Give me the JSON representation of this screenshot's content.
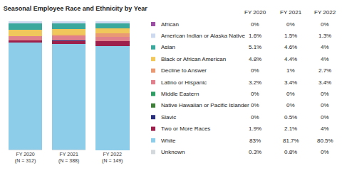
{
  "chart_data": {
    "type": "bar",
    "title": "Seasonal Employee Race and Ethnicity by Year",
    "stacked": true,
    "grid": false,
    "tick_labels": "x",
    "categories": [
      "FY 2020\n(N = 312)",
      "FY 2021\n(N = 388)",
      "FY 2022\n(N = 149)"
    ],
    "ylim": [
      0,
      100
    ],
    "yticks": [
      0,
      100
    ],
    "series": [
      {
        "name": "African",
        "color": "#9b4fa3",
        "values": [
          0,
          0,
          0
        ],
        "value_labels": [
          "0%",
          "0%",
          "0%"
        ]
      },
      {
        "name": "American Indian or Alaska Native",
        "color": "#cdd9ee",
        "values": [
          1.6,
          1.5,
          1.3
        ],
        "value_labels": [
          "1.6%",
          "1.5%",
          "1.3%"
        ]
      },
      {
        "name": "Asian",
        "color": "#3aa89c",
        "values": [
          5.1,
          4.6,
          4
        ],
        "value_labels": [
          "5.1%",
          "4.6%",
          "4%"
        ]
      },
      {
        "name": "Black or African American",
        "color": "#f0c75a",
        "values": [
          4.8,
          4.4,
          4
        ],
        "value_labels": [
          "4.8%",
          "4.4%",
          "4%"
        ]
      },
      {
        "name": "Decline to Answer",
        "color": "#e99a74",
        "values": [
          0,
          1,
          2.7
        ],
        "value_labels": [
          "0%",
          "1%",
          "2.7%"
        ]
      },
      {
        "name": "Latino or Hispanic",
        "color": "#e0808c",
        "values": [
          3.2,
          3.4,
          3.4
        ],
        "value_labels": [
          "3.2%",
          "3.4%",
          "3.4%"
        ]
      },
      {
        "name": "Middle Eastern",
        "color": "#2f9d63",
        "values": [
          0,
          0,
          0
        ],
        "value_labels": [
          "0%",
          "0%",
          "0%"
        ]
      },
      {
        "name": "Native Hawaiian or Pacific Islander",
        "color": "#3f7f3a",
        "values": [
          0,
          0,
          0
        ],
        "value_labels": [
          "0%",
          "0%",
          "0%"
        ]
      },
      {
        "name": "Slavic",
        "color": "#2a2f7c",
        "values": [
          0,
          0.5,
          0
        ],
        "value_labels": [
          "0%",
          "0.5%",
          "0%"
        ]
      },
      {
        "name": "Two or More Races",
        "color": "#9c1f4c",
        "values": [
          1.9,
          2.1,
          4
        ],
        "value_labels": [
          "1.9%",
          "2.1%",
          "4%"
        ]
      },
      {
        "name": "White",
        "color": "#8ecdea",
        "values": [
          83,
          81.7,
          80.5
        ],
        "value_labels": [
          "83%",
          "81.7%",
          "80.5%"
        ]
      },
      {
        "name": "Unknown",
        "color": "#d3d8dc",
        "values": [
          0.3,
          0.8,
          0
        ],
        "value_labels": [
          "0.3%",
          "0.8%",
          "0%"
        ]
      }
    ]
  }
}
